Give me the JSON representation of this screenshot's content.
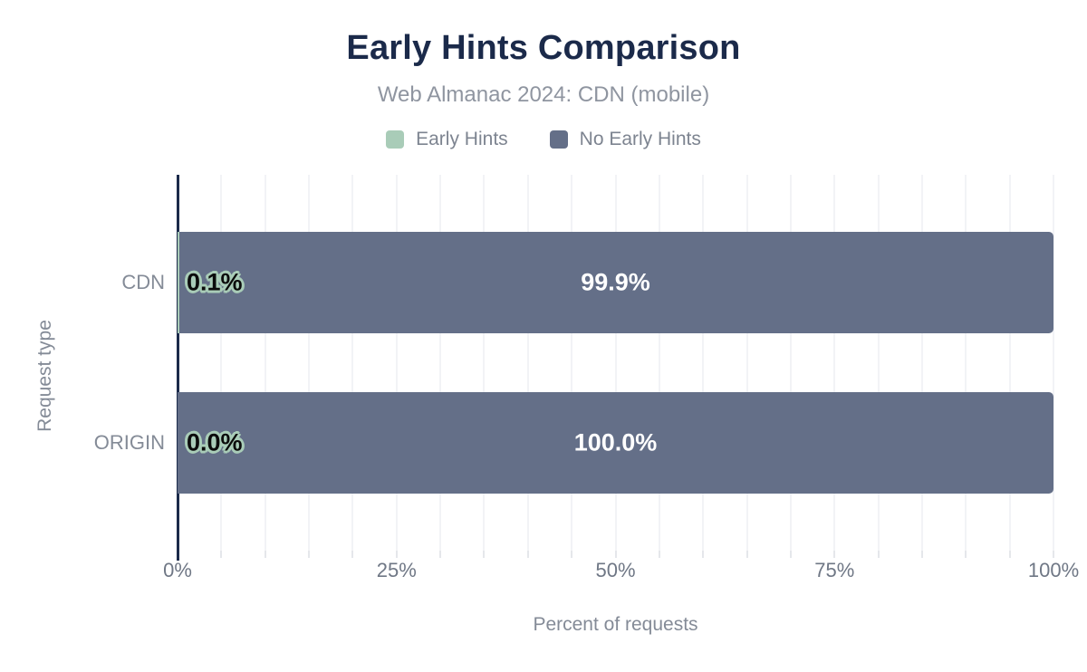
{
  "chart_data": {
    "type": "bar",
    "orientation": "horizontal",
    "stacked": true,
    "title": "Early Hints Comparison",
    "subtitle": "Web Almanac 2024: CDN (mobile)",
    "xlabel": "Percent of requests",
    "ylabel": "Request type",
    "categories": [
      "CDN",
      "ORIGIN"
    ],
    "series": [
      {
        "name": "Early Hints",
        "color": "#a9ccb8",
        "values": [
          0.1,
          0.0
        ],
        "labels": [
          "0.1%",
          "0.0%"
        ]
      },
      {
        "name": "No Early Hints",
        "color": "#646f88",
        "values": [
          99.9,
          100.0
        ],
        "labels": [
          "99.9%",
          "100.0%"
        ]
      }
    ],
    "xlim": [
      0,
      100
    ],
    "x_ticks": [
      {
        "value": 0,
        "label": "0%"
      },
      {
        "value": 25,
        "label": "25%"
      },
      {
        "value": 50,
        "label": "50%"
      },
      {
        "value": 75,
        "label": "75%"
      },
      {
        "value": 100,
        "label": "100%"
      }
    ],
    "grid": true,
    "grid_interval": 5,
    "legend_position": "top"
  },
  "colors": {
    "title": "#1b2a4a",
    "axis_line": "#1b2a4a",
    "background": "#ffffff",
    "bar_center_label": "#ffffff",
    "bar_outlined_label": "#0b0b0b"
  }
}
